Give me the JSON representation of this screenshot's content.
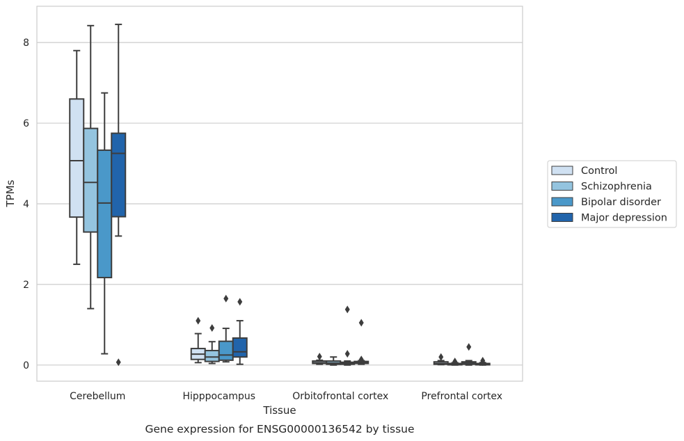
{
  "chart_data": {
    "type": "box",
    "caption": "Gene expression for ENSG00000136542 by tissue",
    "xlabel": "Tissue",
    "ylabel": "TPMs",
    "ylim": [
      -0.4,
      8.9
    ],
    "yticks": [
      0,
      2,
      4,
      6,
      8
    ],
    "grid": true,
    "legend_position": "right",
    "categories": [
      "Cerebellum",
      "Hipppocampus",
      "Orbitofrontal cortex",
      "Prefrontal cortex"
    ],
    "series": [
      {
        "name": "Control",
        "color": "#d0e1f2",
        "boxes": [
          {
            "whislo": 2.5,
            "q1": 3.67,
            "med": 5.07,
            "q3": 6.6,
            "whishi": 7.8,
            "fliers": []
          },
          {
            "whislo": 0.06,
            "q1": 0.14,
            "med": 0.27,
            "q3": 0.41,
            "whishi": 0.78,
            "fliers": [
              1.1
            ]
          },
          {
            "whislo": 0.02,
            "q1": 0.04,
            "med": 0.06,
            "q3": 0.1,
            "whishi": 0.12,
            "fliers": [
              0.21
            ]
          },
          {
            "whislo": 0.01,
            "q1": 0.02,
            "med": 0.04,
            "q3": 0.08,
            "whishi": 0.11,
            "fliers": [
              0.2
            ]
          }
        ]
      },
      {
        "name": "Schizophrenia",
        "color": "#94c4df",
        "boxes": [
          {
            "whislo": 1.4,
            "q1": 3.3,
            "med": 4.53,
            "q3": 5.87,
            "whishi": 8.42,
            "fliers": []
          },
          {
            "whislo": 0.04,
            "q1": 0.09,
            "med": 0.2,
            "q3": 0.36,
            "whishi": 0.58,
            "fliers": [
              0.92
            ]
          },
          {
            "whislo": 0.0,
            "q1": 0.02,
            "med": 0.05,
            "q3": 0.1,
            "whishi": 0.2,
            "fliers": []
          },
          {
            "whislo": 0.0,
            "q1": 0.01,
            "med": 0.02,
            "q3": 0.04,
            "whishi": 0.06,
            "fliers": [
              0.09
            ]
          }
        ]
      },
      {
        "name": "Bipolar disorder",
        "color": "#4a98c9",
        "boxes": [
          {
            "whislo": 0.28,
            "q1": 2.17,
            "med": 4.02,
            "q3": 5.33,
            "whishi": 6.75,
            "fliers": []
          },
          {
            "whislo": 0.08,
            "q1": 0.12,
            "med": 0.25,
            "q3": 0.59,
            "whishi": 0.91,
            "fliers": [
              1.65
            ]
          },
          {
            "whislo": 0.0,
            "q1": 0.02,
            "med": 0.04,
            "q3": 0.07,
            "whishi": 0.1,
            "fliers": [
              0.28,
              1.38
            ]
          },
          {
            "whislo": 0.0,
            "q1": 0.02,
            "med": 0.05,
            "q3": 0.08,
            "whishi": 0.11,
            "fliers": [
              0.45
            ]
          }
        ]
      },
      {
        "name": "Major depression",
        "color": "#2164ab",
        "boxes": [
          {
            "whislo": 3.2,
            "q1": 3.68,
            "med": 5.25,
            "q3": 5.75,
            "whishi": 8.45,
            "fliers": [
              0.07
            ]
          },
          {
            "whislo": 0.02,
            "q1": 0.2,
            "med": 0.33,
            "q3": 0.67,
            "whishi": 1.1,
            "fliers": [
              1.57
            ]
          },
          {
            "whislo": 0.02,
            "q1": 0.04,
            "med": 0.06,
            "q3": 0.09,
            "whishi": 0.11,
            "fliers": [
              0.14,
              1.05
            ]
          },
          {
            "whislo": 0.0,
            "q1": 0.01,
            "med": 0.02,
            "q3": 0.04,
            "whishi": 0.06,
            "fliers": [
              0.11,
              0.07
            ]
          }
        ]
      }
    ]
  }
}
